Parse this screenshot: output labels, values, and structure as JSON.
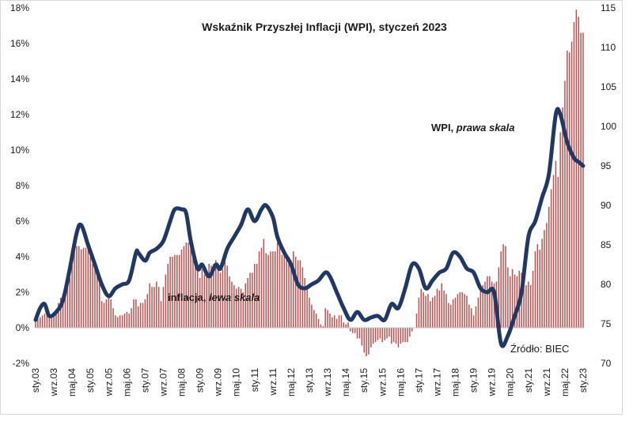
{
  "chart_data": {
    "type": "bar",
    "title": "Wskaźnik Przyszłej Inflacji (WPI), styczeń 2023",
    "source": "Źródło: BIEC",
    "left_axis": {
      "ylim": [
        -2,
        18
      ],
      "tick_values": [
        -2,
        0,
        2,
        4,
        6,
        8,
        10,
        12,
        14,
        16,
        18
      ],
      "tick_labels": [
        "-2%",
        "0%",
        "2%",
        "4%",
        "6%",
        "8%",
        "10%",
        "12%",
        "14%",
        "16%",
        "18%"
      ]
    },
    "right_axis": {
      "ylim": [
        70,
        115
      ],
      "tick_values": [
        70,
        75,
        80,
        85,
        90,
        95,
        100,
        105,
        110,
        115
      ],
      "tick_labels": [
        "70",
        "75",
        "80",
        "85",
        "90",
        "95",
        "100",
        "105",
        "110",
        "115"
      ]
    },
    "x_tick_labels": [
      "sty.03",
      "wrz.03",
      "maj.04",
      "sty.05",
      "wrz.05",
      "maj.06",
      "sty.07",
      "wrz.07",
      "maj.08",
      "sty.09",
      "wrz.09",
      "maj.10",
      "sty.11",
      "wrz.11",
      "maj.12",
      "sty.13",
      "wrz.13",
      "maj.14",
      "sty.15",
      "wrz.15",
      "maj.16",
      "sty.17",
      "wrz.17",
      "maj.18",
      "sty.19",
      "wrz.19",
      "maj.20",
      "sty.21",
      "wrz.21",
      "maj.22",
      "sty.23"
    ],
    "annotations": {
      "inflation": {
        "text_regular": "inflacja, ",
        "text_italic": "lewa skala"
      },
      "wpi": {
        "text_regular": "WPI, ",
        "text_italic": "prawa skala"
      }
    },
    "colors": {
      "bars": "#c0504d",
      "line": "#1f3864",
      "axis": "#bfbfbf"
    },
    "series": [
      {
        "name": "inflacja",
        "axis": "left",
        "style": "bar",
        "x_start": "2003-01",
        "x_end": "2023-01",
        "frequency": "monthly",
        "values": [
          0.4,
          0.5,
          0.6,
          0.7,
          0.8,
          0.8,
          0.8,
          0.7,
          0.8,
          1.0,
          1.4,
          1.7,
          1.9,
          2.0,
          2.3,
          2.8,
          3.5,
          4.4,
          4.6,
          4.6,
          4.4,
          4.5,
          4.5,
          4.4,
          4.0,
          3.6,
          3.4,
          3.0,
          2.5,
          1.5,
          1.4,
          1.6,
          1.8,
          1.6,
          1.1,
          0.7,
          0.6,
          0.7,
          0.7,
          0.8,
          0.9,
          0.8,
          1.1,
          1.6,
          1.6,
          1.2,
          1.4,
          1.4,
          1.6,
          1.9,
          2.5,
          2.3,
          2.3,
          2.6,
          2.3,
          1.5,
          2.3,
          3.0,
          3.6,
          4.0,
          4.0,
          4.1,
          4.1,
          4.1,
          4.4,
          4.6,
          4.8,
          4.8,
          4.5,
          4.2,
          3.7,
          3.3,
          2.8,
          3.3,
          3.0,
          3.0,
          3.6,
          3.5,
          3.6,
          3.8,
          3.4,
          3.1,
          3.3,
          3.8,
          3.5,
          2.9,
          2.6,
          2.4,
          2.2,
          2.3,
          2.2,
          2.0,
          2.5,
          2.8,
          3.1,
          3.1,
          3.6,
          3.6,
          4.3,
          4.5,
          5.0,
          4.2,
          4.1,
          4.3,
          4.3,
          4.3,
          4.8,
          4.6,
          4.1,
          4.3,
          3.9,
          4.0,
          3.6,
          4.3,
          4.0,
          3.8,
          3.8,
          3.4,
          2.8,
          2.4,
          1.7,
          1.3,
          1.0,
          0.8,
          0.5,
          0.2,
          0.1,
          1.1,
          1.0,
          0.8,
          0.6,
          0.7,
          0.5,
          0.7,
          0.7,
          0.3,
          0.2,
          0.3,
          -0.2,
          -0.3,
          -0.3,
          -0.6,
          -0.6,
          -1.0,
          -1.4,
          -1.6,
          -1.5,
          -1.1,
          -0.9,
          -0.8,
          -0.7,
          -0.6,
          -0.8,
          -0.7,
          -0.6,
          -0.5,
          -0.9,
          -0.8,
          -0.9,
          -1.1,
          -0.9,
          -0.8,
          -0.8,
          -0.8,
          -0.5,
          -0.2,
          0.0,
          0.8,
          1.7,
          2.2,
          2.0,
          1.8,
          1.9,
          1.5,
          1.7,
          1.8,
          2.2,
          2.1,
          2.5,
          2.1,
          1.9,
          1.4,
          1.3,
          1.6,
          1.7,
          1.9,
          2.0,
          2.0,
          1.9,
          1.8,
          1.3,
          1.1,
          0.7,
          1.2,
          1.7,
          2.2,
          2.4,
          2.6,
          2.9,
          2.9,
          2.6,
          2.5,
          2.6,
          3.4,
          4.3,
          4.7,
          4.6,
          3.4,
          2.9,
          3.3,
          3.0,
          2.9,
          3.2,
          3.1,
          3.0,
          2.4,
          2.6,
          2.4,
          3.2,
          4.3,
          4.7,
          4.4,
          5.0,
          5.5,
          5.9,
          6.8,
          7.8,
          8.6,
          9.4,
          8.5,
          11.0,
          12.4,
          13.9,
          15.6,
          15.5,
          16.1,
          17.2,
          17.9,
          17.5,
          16.6,
          16.6
        ]
      },
      {
        "name": "WPI",
        "axis": "right",
        "style": "line",
        "points": [
          [
            "2003-01",
            75.5
          ],
          [
            "2003-03",
            77.0
          ],
          [
            "2003-05",
            77.5
          ],
          [
            "2003-07",
            76.0
          ],
          [
            "2003-10",
            76.5
          ],
          [
            "2004-01",
            78.0
          ],
          [
            "2004-04",
            82.0
          ],
          [
            "2004-07",
            86.5
          ],
          [
            "2004-09",
            87.5
          ],
          [
            "2004-12",
            85.0
          ],
          [
            "2005-03",
            82.5
          ],
          [
            "2005-06",
            80.0
          ],
          [
            "2005-09",
            78.5
          ],
          [
            "2005-12",
            79.5
          ],
          [
            "2006-03",
            80.0
          ],
          [
            "2006-06",
            80.5
          ],
          [
            "2006-09",
            84.0
          ],
          [
            "2006-10",
            84.0
          ],
          [
            "2007-01",
            83.0
          ],
          [
            "2007-03",
            84.0
          ],
          [
            "2007-06",
            84.5
          ],
          [
            "2007-09",
            85.5
          ],
          [
            "2007-12",
            88.0
          ],
          [
            "2008-02",
            89.5
          ],
          [
            "2008-05",
            89.5
          ],
          [
            "2008-07",
            89.0
          ],
          [
            "2008-09",
            85.5
          ],
          [
            "2008-12",
            82.0
          ],
          [
            "2009-02",
            82.5
          ],
          [
            "2009-05",
            81.0
          ],
          [
            "2009-08",
            82.5
          ],
          [
            "2009-10",
            82.0
          ],
          [
            "2010-01",
            84.5
          ],
          [
            "2010-04",
            86.0
          ],
          [
            "2010-07",
            87.5
          ],
          [
            "2010-10",
            89.5
          ],
          [
            "2011-01",
            88.0
          ],
          [
            "2011-04",
            89.5
          ],
          [
            "2011-06",
            90.0
          ],
          [
            "2011-09",
            88.5
          ],
          [
            "2011-11",
            86.0
          ],
          [
            "2012-02",
            84.0
          ],
          [
            "2012-05",
            82.5
          ],
          [
            "2012-08",
            80.0
          ],
          [
            "2012-11",
            79.5
          ],
          [
            "2013-02",
            80.0
          ],
          [
            "2013-05",
            80.5
          ],
          [
            "2013-08",
            81.5
          ],
          [
            "2013-10",
            81.0
          ],
          [
            "2014-01",
            79.0
          ],
          [
            "2014-04",
            77.0
          ],
          [
            "2014-07",
            75.5
          ],
          [
            "2014-10",
            76.5
          ],
          [
            "2015-01",
            75.5
          ],
          [
            "2015-04",
            75.8
          ],
          [
            "2015-07",
            76.0
          ],
          [
            "2015-10",
            75.5
          ],
          [
            "2016-01",
            77.5
          ],
          [
            "2016-04",
            77.0
          ],
          [
            "2016-07",
            79.5
          ],
          [
            "2016-10",
            82.5
          ],
          [
            "2017-01",
            82.0
          ],
          [
            "2017-04",
            79.5
          ],
          [
            "2017-07",
            80.5
          ],
          [
            "2017-10",
            81.5
          ],
          [
            "2018-01",
            82.0
          ],
          [
            "2018-04",
            84.0
          ],
          [
            "2018-07",
            83.5
          ],
          [
            "2018-10",
            82.0
          ],
          [
            "2019-01",
            81.5
          ],
          [
            "2019-04",
            79.5
          ],
          [
            "2019-07",
            79.0
          ],
          [
            "2019-10",
            79.0
          ],
          [
            "2020-01",
            72.5
          ],
          [
            "2020-04",
            73.5
          ],
          [
            "2020-07",
            76.0
          ],
          [
            "2020-10",
            79.0
          ],
          [
            "2021-01",
            86.0
          ],
          [
            "2021-04",
            88.0
          ],
          [
            "2021-07",
            91.0
          ],
          [
            "2021-10",
            94.0
          ],
          [
            "2022-01",
            101.5
          ],
          [
            "2022-03",
            101.5
          ],
          [
            "2022-06",
            98.0
          ],
          [
            "2022-09",
            96.0
          ],
          [
            "2022-11",
            95.5
          ],
          [
            "2023-01",
            95.0
          ]
        ]
      }
    ],
    "grid": false,
    "legend": "none"
  }
}
